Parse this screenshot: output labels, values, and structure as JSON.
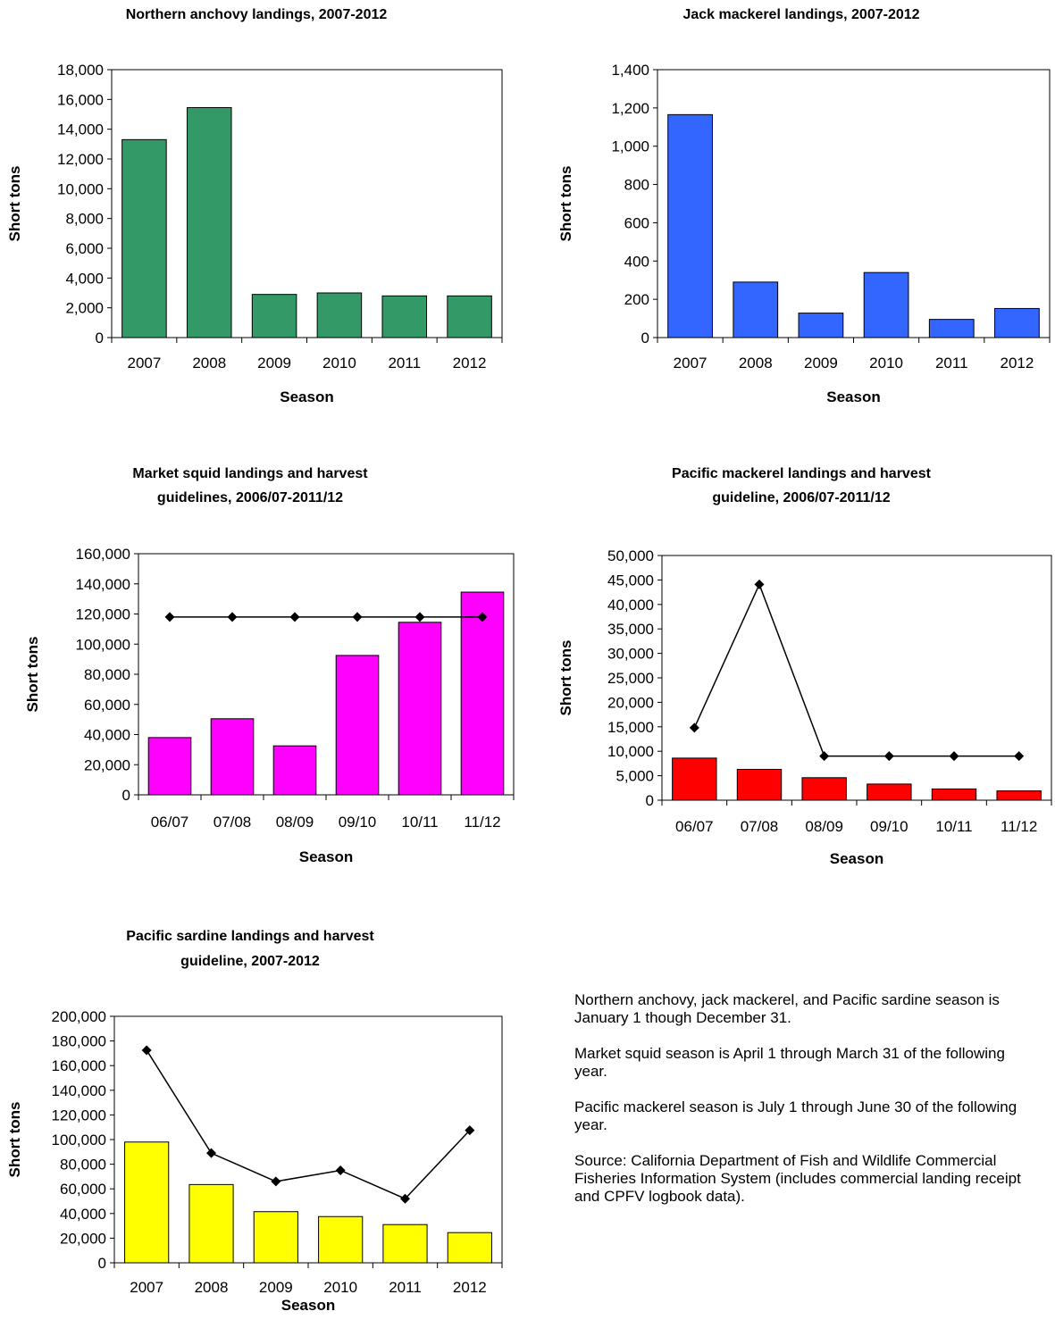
{
  "chart_data": [
    {
      "type": "bar",
      "title_lines": [
        "Northern anchovy landings, 2007-2012"
      ],
      "xlabel": "Season",
      "ylabel": "Short tons",
      "categories": [
        "2007",
        "2008",
        "2009",
        "2010",
        "2011",
        "2012"
      ],
      "series": [
        {
          "values": [
            13300,
            15450,
            2900,
            3000,
            2800,
            2800
          ],
          "color": "#339966"
        }
      ],
      "ylim": [
        0,
        18000
      ],
      "yticks": [
        0,
        2000,
        4000,
        6000,
        8000,
        10000,
        12000,
        14000,
        16000,
        18000
      ],
      "ytick_labels": [
        "0",
        "2,000",
        "4,000",
        "6,000",
        "8,000",
        "10,000",
        "12,000",
        "14,000",
        "16,000",
        "18,000"
      ],
      "grid": false,
      "legend": false
    },
    {
      "type": "bar",
      "title_lines": [
        "Jack mackerel landings, 2007-2012"
      ],
      "xlabel": "Season",
      "ylabel": "Short tons",
      "categories": [
        "2007",
        "2008",
        "2009",
        "2010",
        "2011",
        "2012"
      ],
      "series": [
        {
          "values": [
            1165,
            290,
            128,
            340,
            95,
            152
          ],
          "color": "#3366FF"
        }
      ],
      "ylim": [
        0,
        1400
      ],
      "yticks": [
        0,
        200,
        400,
        600,
        800,
        1000,
        1200,
        1400
      ],
      "ytick_labels": [
        "0",
        "200",
        "400",
        "600",
        "800",
        "1,000",
        "1,200",
        "1,400"
      ],
      "grid": false,
      "legend": false
    },
    {
      "type": "bar",
      "title_lines": [
        "Market squid landings and harvest",
        "guidelines, 2006/07-2011/12"
      ],
      "xlabel": "Season",
      "ylabel": "Short tons",
      "categories": [
        "06/07",
        "07/08",
        "08/09",
        "09/10",
        "10/11",
        "11/12"
      ],
      "series": [
        {
          "values": [
            38000,
            50500,
            32500,
            92500,
            114500,
            134500
          ],
          "color": "#FF00FF"
        }
      ],
      "line_series": [
        {
          "values": [
            118000,
            118000,
            118000,
            118000,
            118000,
            118000
          ]
        }
      ],
      "ylim": [
        0,
        160000
      ],
      "yticks": [
        0,
        20000,
        40000,
        60000,
        80000,
        100000,
        120000,
        140000,
        160000
      ],
      "ytick_labels": [
        "0",
        "20,000",
        "40,000",
        "60,000",
        "80,000",
        "100,000",
        "120,000",
        "140,000",
        "160,000"
      ],
      "grid": false,
      "legend": false
    },
    {
      "type": "bar",
      "title_lines": [
        "Pacific mackerel landings and harvest",
        "guideline, 2006/07-2011/12"
      ],
      "xlabel": "Season",
      "ylabel": "Short tons",
      "categories": [
        "06/07",
        "07/08",
        "08/09",
        "09/10",
        "10/11",
        "11/12"
      ],
      "series": [
        {
          "values": [
            8600,
            6300,
            4600,
            3300,
            2300,
            1900
          ],
          "color": "#FF0000"
        }
      ],
      "line_series": [
        {
          "values": [
            14800,
            44100,
            9000,
            9000,
            9000,
            9000
          ]
        }
      ],
      "ylim": [
        0,
        50000
      ],
      "yticks": [
        0,
        5000,
        10000,
        15000,
        20000,
        25000,
        30000,
        35000,
        40000,
        45000,
        50000
      ],
      "ytick_labels": [
        "0",
        "5,000",
        "10,000",
        "15,000",
        "20,000",
        "25,000",
        "30,000",
        "35,000",
        "40,000",
        "45,000",
        "50,000"
      ],
      "grid": false,
      "legend": false
    },
    {
      "type": "bar",
      "title_lines": [
        "Pacific sardine landings and harvest",
        "guideline, 2007-2012"
      ],
      "xlabel": "Season",
      "ylabel": "Short tons",
      "categories": [
        "2007",
        "2008",
        "2009",
        "2010",
        "2011",
        "2012"
      ],
      "series": [
        {
          "values": [
            98000,
            63500,
            41500,
            37500,
            31000,
            24500
          ],
          "color": "#FFFF00"
        }
      ],
      "line_series": [
        {
          "values": [
            172500,
            89000,
            66000,
            75000,
            52000,
            107500
          ]
        }
      ],
      "ylim": [
        0,
        200000
      ],
      "yticks": [
        0,
        20000,
        40000,
        60000,
        80000,
        100000,
        120000,
        140000,
        160000,
        180000,
        200000
      ],
      "ytick_labels": [
        "0",
        "20,000",
        "40,000",
        "60,000",
        "80,000",
        "100,000",
        "120,000",
        "140,000",
        "160,000",
        "180,000",
        "200,000"
      ],
      "grid": false,
      "legend": false
    }
  ],
  "notes": [
    "Northern anchovy, jack mackerel, and Pacific sardine season is January 1 though December 31.",
    "Market squid season is April 1 through March 31 of the following year.",
    "Pacific mackerel season is July 1 through June 30 of the following year.",
    "Source:  California Department of Fish and Wildlife Commercial Fisheries Information System (includes commercial landing receipt and CPFV logbook data)."
  ]
}
